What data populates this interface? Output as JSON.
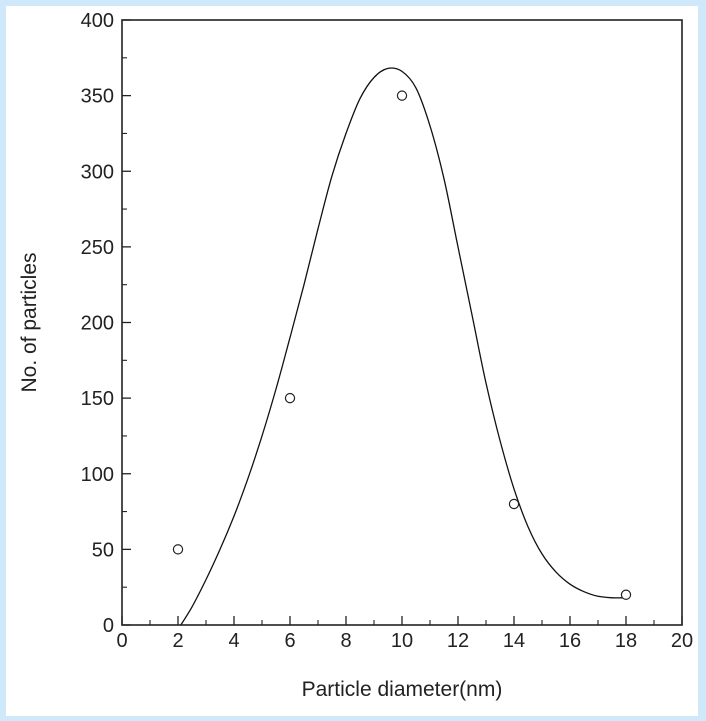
{
  "chart_data": {
    "type": "scatter",
    "title": "",
    "xlabel": "Particle diameter(nm)",
    "ylabel": "No. of particles",
    "xlim": [
      0,
      20
    ],
    "ylim": [
      0,
      400
    ],
    "x_ticks": [
      0,
      2,
      4,
      6,
      8,
      10,
      12,
      14,
      16,
      18,
      20
    ],
    "y_ticks": [
      0,
      50,
      100,
      150,
      200,
      250,
      300,
      350,
      400
    ],
    "grid": false,
    "legend": "none",
    "series": [
      {
        "type": "scatter",
        "marker": "open-circle",
        "x": [
          2,
          6,
          10,
          14,
          18
        ],
        "y": [
          50,
          150,
          350,
          80,
          20
        ]
      },
      {
        "type": "line",
        "style": "smooth-fit",
        "x": [
          2.1,
          2.5,
          3,
          3.5,
          4,
          4.5,
          5,
          5.5,
          6,
          6.5,
          7,
          7.5,
          8,
          8.5,
          9,
          9.5,
          10,
          10.5,
          11,
          11.5,
          12,
          12.5,
          13,
          13.5,
          14,
          14.5,
          15,
          15.5,
          16,
          16.5,
          17,
          17.5,
          18
        ],
        "y": [
          0,
          12,
          30,
          50,
          72,
          97,
          125,
          156,
          190,
          225,
          262,
          297,
          325,
          348,
          362,
          368,
          366,
          355,
          330,
          295,
          250,
          205,
          160,
          122,
          90,
          65,
          47,
          35,
          27,
          22,
          19,
          18,
          18
        ]
      }
    ]
  }
}
